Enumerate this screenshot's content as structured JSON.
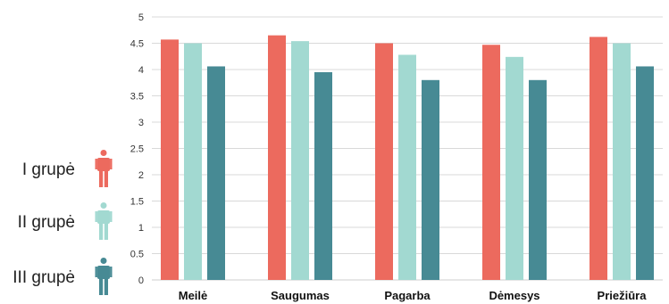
{
  "chart_data": {
    "type": "bar",
    "title": "",
    "xlabel": "",
    "ylabel": "",
    "categories": [
      "Meilė",
      "Saugumas",
      "Pagarba",
      "Dėmesys",
      "Priežiūra"
    ],
    "ylim": [
      0,
      5
    ],
    "yticks": [
      "0",
      "0.5",
      "1",
      "1.5",
      "2",
      "2.5",
      "3",
      "3.5",
      "4",
      "4.5",
      "5"
    ],
    "grid": true,
    "legend_position": "left",
    "series": [
      {
        "name": "I grupė",
        "color": "#ec6a5e",
        "icon": "person-icon",
        "values": [
          4.57,
          4.65,
          4.5,
          4.47,
          4.62
        ]
      },
      {
        "name": "II grupė",
        "color": "#a2d9d1",
        "icon": "person-icon",
        "values": [
          4.5,
          4.54,
          4.28,
          4.24,
          4.5
        ]
      },
      {
        "name": "III grupė",
        "color": "#478a94",
        "icon": "person-icon",
        "values": [
          4.06,
          3.95,
          3.8,
          3.8,
          4.06
        ]
      }
    ]
  }
}
